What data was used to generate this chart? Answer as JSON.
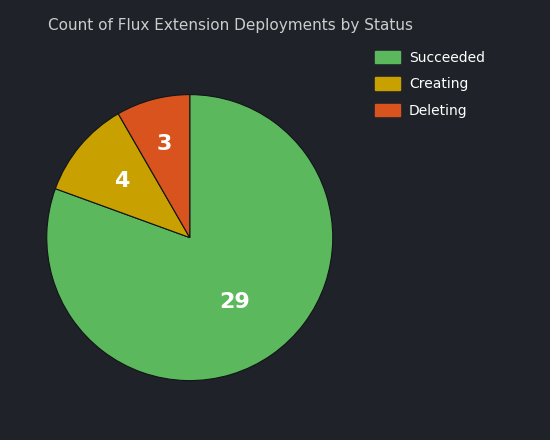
{
  "title": "Count of Flux Extension Deployments by Status",
  "labels": [
    "Succeeded",
    "Creating",
    "Deleting"
  ],
  "values": [
    29,
    4,
    3
  ],
  "colors": [
    "#5cb85c",
    "#c8a000",
    "#d9531e"
  ],
  "background_color": "#1f2329",
  "text_color": "#ffffff",
  "title_color": "#cccccc",
  "legend_labels": [
    "Succeeded",
    "Creating",
    "Deleting"
  ],
  "startangle": 90,
  "label_fontsize": 16,
  "title_fontsize": 11
}
